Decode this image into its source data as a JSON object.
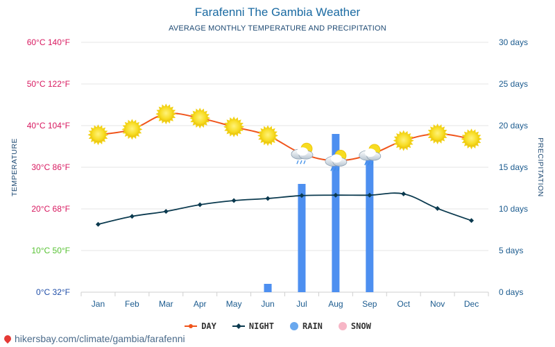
{
  "title": "Farafenni The Gambia Weather",
  "subtitle": "AVERAGE MONTHLY TEMPERATURE AND PRECIPITATION",
  "footer_url": "hikersbay.com/climate/gambia/farafenni",
  "legend": [
    {
      "label": "DAY",
      "color": "#f0541b",
      "kind": "line-dot"
    },
    {
      "label": "NIGHT",
      "color": "#0b3a4f",
      "kind": "line-diamond"
    },
    {
      "label": "RAIN",
      "color": "#6aa8ee",
      "kind": "circle"
    },
    {
      "label": "SNOW",
      "color": "#f7b6c6",
      "kind": "circle"
    }
  ],
  "chart_data": {
    "type": "line",
    "categories": [
      "Jan",
      "Feb",
      "Mar",
      "Apr",
      "May",
      "Jun",
      "Jul",
      "Aug",
      "Sep",
      "Oct",
      "Nov",
      "Dec"
    ],
    "series": [
      {
        "name": "DAY",
        "axis": "temperature",
        "values": [
          37.8,
          39.1,
          42.8,
          41.8,
          39.7,
          37.6,
          33.3,
          31.6,
          33.0,
          36.4,
          38.0,
          36.8
        ]
      },
      {
        "name": "NIGHT",
        "axis": "temperature",
        "values": [
          16.3,
          18.2,
          19.4,
          21.0,
          22.0,
          22.5,
          23.2,
          23.3,
          23.3,
          23.6,
          20.1,
          17.2
        ]
      },
      {
        "name": "RAIN",
        "axis": "precipitation",
        "type": "bar",
        "values": [
          0,
          0,
          0,
          0,
          0,
          1,
          13,
          19,
          17,
          0,
          0,
          0
        ]
      }
    ],
    "weather_icons": [
      "sun",
      "sun",
      "sun",
      "sun",
      "sun",
      "sun",
      "rain",
      "rain",
      "rain",
      "sun",
      "sun",
      "sun"
    ],
    "y_left": {
      "label": "TEMPERATURE",
      "range": [
        0,
        60
      ],
      "ticks": [
        {
          "value": 0,
          "label": "0°C 32°F",
          "color": "#1f4ea8"
        },
        {
          "value": 10,
          "label": "10°C 50°F",
          "color": "#57c233"
        },
        {
          "value": 20,
          "label": "20°C 68°F",
          "color": "#d8185f"
        },
        {
          "value": 30,
          "label": "30°C 86°F",
          "color": "#d8185f"
        },
        {
          "value": 40,
          "label": "40°C 104°F",
          "color": "#d8185f"
        },
        {
          "value": 50,
          "label": "50°C 122°F",
          "color": "#d8185f"
        },
        {
          "value": 60,
          "label": "60°C 140°F",
          "color": "#d8185f"
        }
      ]
    },
    "y_right": {
      "label": "PRECIPITATION",
      "range": [
        0,
        30
      ],
      "ticks": [
        {
          "value": 0,
          "label": "0 days"
        },
        {
          "value": 5,
          "label": "5 days"
        },
        {
          "value": 10,
          "label": "10 days"
        },
        {
          "value": 15,
          "label": "15 days"
        },
        {
          "value": 20,
          "label": "20 days"
        },
        {
          "value": 25,
          "label": "25 days"
        },
        {
          "value": 30,
          "label": "30 days"
        }
      ]
    },
    "grid": true,
    "legend_position": "bottom",
    "colors": {
      "day": "#f0541b",
      "night": "#0b3a4f",
      "rain_bar": "#4d8ff0",
      "grid": "#e6e6e6"
    }
  }
}
